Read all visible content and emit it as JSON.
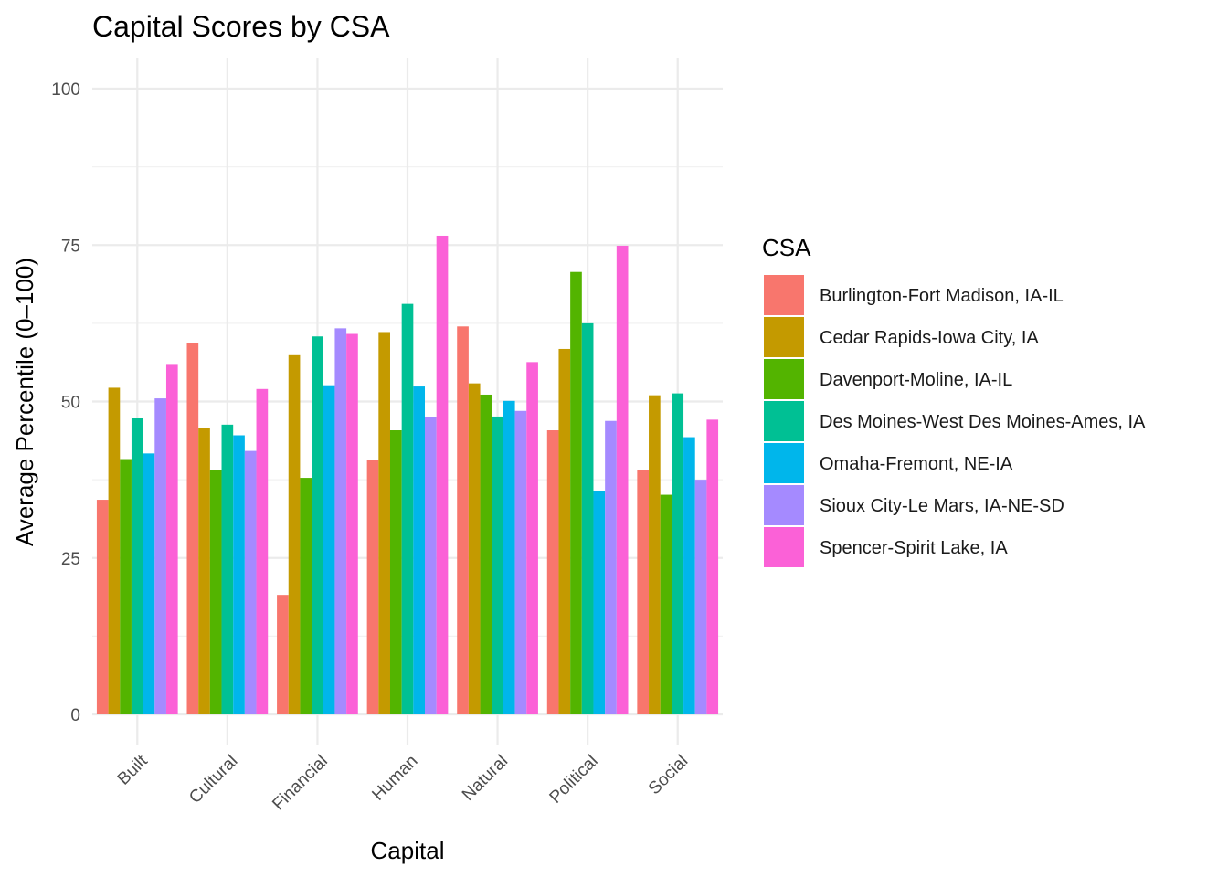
{
  "chart_data": {
    "type": "bar",
    "title": "Capital Scores by CSA",
    "xlabel": "Capital",
    "ylabel": "Average Percentile (0–100)",
    "ylim": [
      0,
      100
    ],
    "yticks": [
      0,
      25,
      50,
      75,
      100
    ],
    "grid": true,
    "legend_title": "CSA",
    "legend_position": "right",
    "categories": [
      "Built",
      "Cultural",
      "Financial",
      "Human",
      "Natural",
      "Political",
      "Social"
    ],
    "series": [
      {
        "name": "Burlington-Fort Madison, IA-IL",
        "color": "#F8766D",
        "values": [
          34.3,
          59.4,
          19.1,
          40.6,
          62.0,
          45.4,
          39.0
        ]
      },
      {
        "name": "Cedar Rapids-Iowa City, IA",
        "color": "#C49A00",
        "values": [
          52.2,
          45.8,
          57.4,
          61.1,
          52.9,
          58.4,
          51.0
        ]
      },
      {
        "name": "Davenport-Moline, IA-IL",
        "color": "#53B400",
        "values": [
          40.8,
          39.0,
          37.8,
          45.4,
          51.1,
          70.7,
          35.1
        ]
      },
      {
        "name": "Des Moines-West Des Moines-Ames, IA",
        "color": "#00C094",
        "values": [
          47.3,
          46.3,
          60.4,
          65.6,
          47.6,
          62.5,
          51.3
        ]
      },
      {
        "name": "Omaha-Fremont, NE-IA",
        "color": "#00B6EB",
        "values": [
          41.7,
          44.6,
          52.6,
          52.4,
          50.1,
          35.7,
          44.3
        ]
      },
      {
        "name": "Sioux City-Le Mars, IA-NE-SD",
        "color": "#A58AFF",
        "values": [
          50.5,
          42.1,
          61.7,
          47.5,
          48.5,
          46.9,
          37.5
        ]
      },
      {
        "name": "Spencer-Spirit Lake, IA",
        "color": "#FB61D7",
        "values": [
          56.0,
          52.0,
          60.8,
          76.5,
          56.3,
          74.9,
          47.1
        ]
      }
    ]
  }
}
